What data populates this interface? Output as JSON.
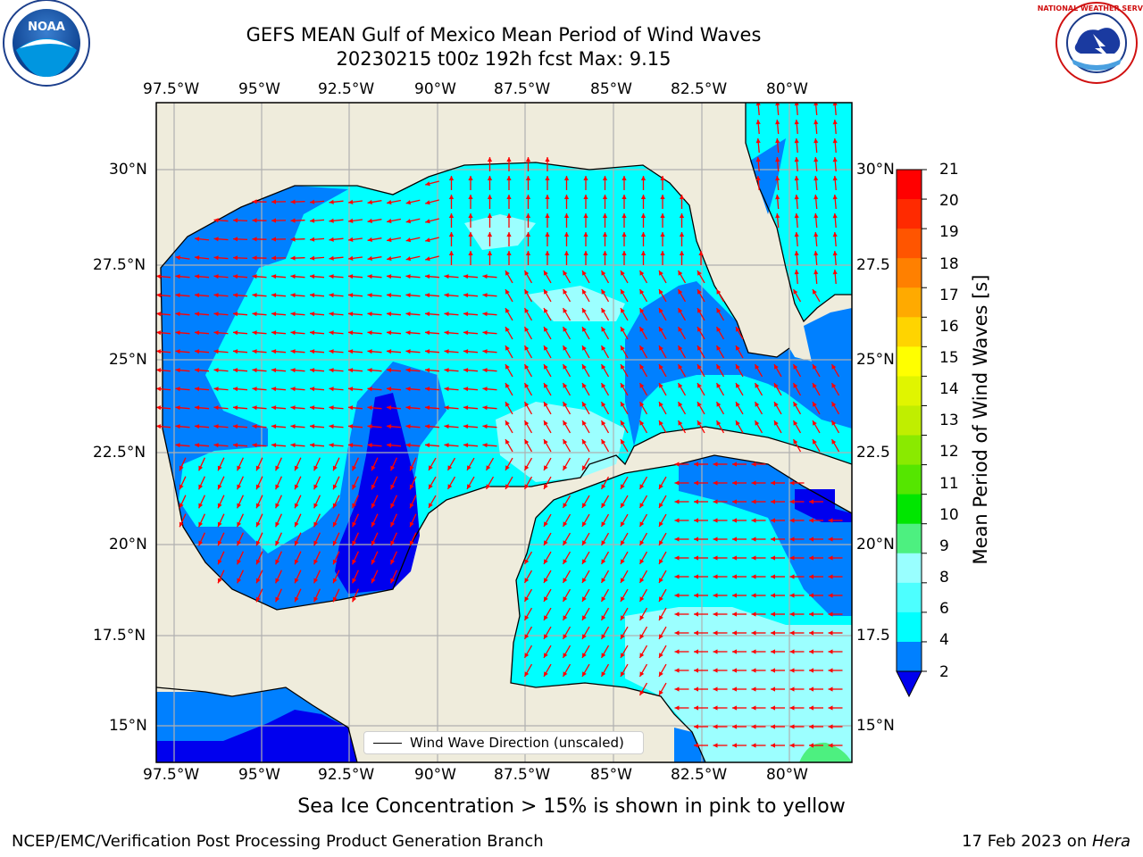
{
  "title": {
    "line1": "GEFS MEAN Gulf of Mexico Mean Period of Wind Waves",
    "line2": "20230215 t00z 192h fcst   Max: 9.15"
  },
  "longitude_ticks": [
    "97.5°W",
    "95°W",
    "92.5°W",
    "90°W",
    "87.5°W",
    "85°W",
    "82.5°W",
    "80°W"
  ],
  "latitude_ticks_left": [
    "30°N",
    "27.5°N",
    "25°N",
    "22.5°N",
    "20°N",
    "17.5°N",
    "15°N"
  ],
  "latitude_ticks_right": [
    "30°N",
    "27.5",
    "25°N",
    "22.5",
    "20°N",
    "17.5",
    "15°N"
  ],
  "legend": {
    "label": "Wind Wave Direction (unscaled)"
  },
  "colorbar": {
    "label": "Mean Period of Wind Waves [s]",
    "ticks": [
      "21",
      "20",
      "19",
      "18",
      "17",
      "16",
      "15",
      "14",
      "13",
      "12",
      "11",
      "10",
      "9",
      "8",
      "6",
      "4",
      "2"
    ],
    "colors": [
      "#ff0000",
      "#ff2a00",
      "#ff5500",
      "#ff8000",
      "#ffaa00",
      "#ffd400",
      "#ffff00",
      "#e0f500",
      "#c0ee00",
      "#8aea00",
      "#55e600",
      "#00e600",
      "#4df080",
      "#99ffff",
      "#4dffff",
      "#00ffff",
      "#0080ff",
      "#0000ee"
    ]
  },
  "ice_note": "Sea Ice Concentration > 15% is shown in pink to yellow",
  "footer": {
    "left": "NCEP/EMC/Verification Post Processing Product Generation Branch",
    "right_prefix": "17 Feb 2023 on ",
    "right_host": "Hera"
  },
  "logos": {
    "left": "NOAA",
    "right": "NATIONAL WEATHER SERVICE"
  },
  "map_colors": {
    "land": "#efecdc",
    "coast": "#000000",
    "arrow": "#ff0000",
    "grid": "#b0b0b0"
  }
}
